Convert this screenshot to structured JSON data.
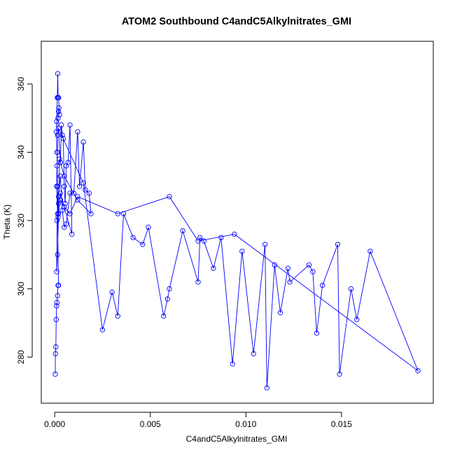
{
  "chart_data": {
    "type": "line",
    "title": "ATOM2 Southbound C4andC5Alkylnitrates_GMI",
    "xlabel": "C4andC5Alkylnitrates_GMI",
    "ylabel": "Theta (K)",
    "xlim": [
      -0.0007,
      0.0198
    ],
    "ylim": [
      266.5,
      372.5
    ],
    "xticks": [
      0.0,
      0.005,
      0.01,
      0.015
    ],
    "xtick_labels": [
      "0.000",
      "0.005",
      "0.010",
      "0.015"
    ],
    "yticks": [
      280,
      300,
      320,
      340,
      360
    ],
    "ytick_labels": [
      "280",
      "300",
      "320",
      "340",
      "360"
    ],
    "grid": false,
    "legend": "none",
    "marker": "open-circle",
    "color": "#0000ff",
    "series": [
      {
        "x": [
          3e-05,
          4e-05,
          6e-05,
          8e-05,
          0.0001,
          0.00012,
          0.00015,
          0.00018,
          0.0002,
          0.00015,
          0.0001,
          0.00012,
          0.00014,
          0.00016,
          0.00018,
          0.0002,
          0.00022,
          0.00025,
          0.0002,
          0.00018,
          0.00016,
          0.00014,
          0.0001,
          8e-05,
          0.00012,
          0.00015,
          0.00018,
          0.0002,
          0.00025,
          0.0003,
          0.00035,
          0.0004,
          0.00045,
          0.0005,
          0.00055,
          0.0006,
          0.0007,
          0.0008,
          0.0009,
          0.0003,
          0.0002,
          0.00015,
          0.0001,
          0.00012,
          0.0002,
          0.0003,
          0.0004,
          0.0005,
          0.0006,
          0.0008,
          0.001,
          0.0012,
          0.0013,
          0.0015,
          0.0016,
          0.0018,
          0.0019,
          0.0012,
          0.0005,
          0.0003,
          0.0002,
          0.0015,
          0.0025,
          0.003,
          0.0033,
          0.0036,
          0.0041,
          0.0046,
          0.0049,
          0.0057,
          0.0059,
          0.006,
          0.0067,
          0.0075,
          0.0076,
          0.0078,
          0.0083,
          0.0087,
          0.0093,
          0.0098,
          0.0104,
          0.011,
          0.0111,
          0.0115,
          0.0118,
          0.0122,
          0.0123,
          0.0133,
          0.0135,
          0.0137,
          0.014,
          0.0148,
          0.0149,
          0.0155,
          0.0158,
          0.0165,
          0.019,
          0.0094,
          0.0075,
          0.006,
          0.0033,
          0.0012,
          0.0008,
          0.0005,
          0.0003
        ],
        "y": [
          275,
          281,
          283,
          291,
          295,
          296,
          298,
          301,
          301,
          322,
          330,
          336,
          340,
          345,
          350,
          352,
          353,
          351,
          356,
          356,
          363,
          356,
          349,
          346,
          340,
          330,
          321,
          325,
          338,
          337,
          348,
          345,
          344,
          330,
          325,
          336,
          337,
          348,
          316,
          328,
          322,
          310,
          305,
          320,
          327,
          333,
          323,
          318,
          319,
          328,
          328,
          346,
          330,
          343,
          329,
          328,
          322,
          326,
          333,
          337,
          347,
          331,
          288,
          299,
          292,
          322,
          315,
          313,
          318,
          292,
          297,
          300,
          317,
          302,
          315,
          314,
          306,
          315,
          278,
          311,
          281,
          313,
          271,
          307,
          293,
          306,
          302,
          307,
          305,
          287,
          301,
          313,
          275,
          300,
          291,
          311,
          276,
          316,
          314,
          327,
          322,
          327,
          322,
          324,
          326
        ]
      }
    ]
  }
}
